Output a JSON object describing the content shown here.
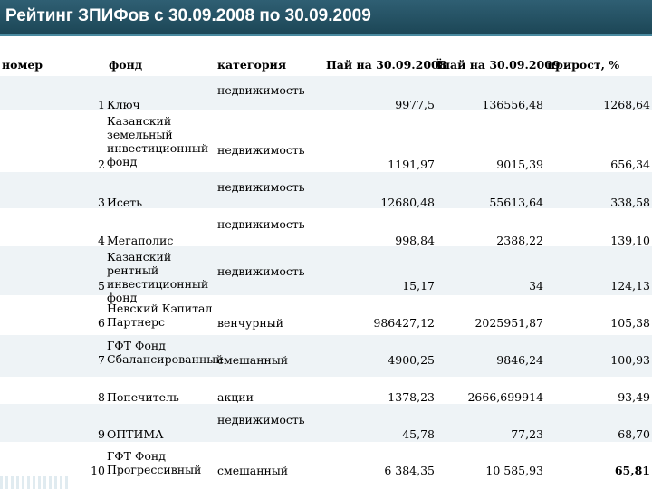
{
  "title": "Рейтинг ЗПИФов с 30.09.2008 по 30.09.2009",
  "headers": {
    "nomer": "номер",
    "fond": "фонд",
    "kategoriya": "категория",
    "pai2008": "Пай на 30.09.2008",
    "pai2009": "Ïпай на 30.09.2009",
    "prirost": "прирост, %"
  },
  "rows": [
    {
      "n": "1",
      "fund": "Ключ",
      "cat": "недвижимость",
      "v2008": "9977,5",
      "v2009": "136556,48",
      "growth": "1268,64"
    },
    {
      "n": "2",
      "fund": "Казанский земельный инвестиционный фонд",
      "cat": "недвижимость",
      "v2008": "1191,97",
      "v2009": "9015,39",
      "growth": "656,34"
    },
    {
      "n": "3",
      "fund": "Исеть",
      "cat": "недвижимость",
      "v2008": "12680,48",
      "v2009": "55613,64",
      "growth": "338,58"
    },
    {
      "n": "4",
      "fund": "Мегаполис",
      "cat": "недвижимость",
      "v2008": "998,84",
      "v2009": "2388,22",
      "growth": "139,10"
    },
    {
      "n": "5",
      "fund": "Казанский рентный инвестиционный фонд",
      "cat": "недвижимость",
      "v2008": "15,17",
      "v2009": "34",
      "growth": "124,13"
    },
    {
      "n": "6",
      "fund": "Невский Кэпитал Партнерс",
      "cat": "венчурный",
      "v2008": "986427,12",
      "v2009": "2025951,87",
      "growth": "105,38"
    },
    {
      "n": "7",
      "fund": "ГФТ Фонд Сбалансированный",
      "cat": "смешанный",
      "v2008": "4900,25",
      "v2009": "9846,24",
      "growth": "100,93"
    },
    {
      "n": "8",
      "fund": "Попечитель",
      "cat": "акции",
      "v2008": "1378,23",
      "v2009": "2666,699914",
      "growth": "93,49"
    },
    {
      "n": "9",
      "fund": "ОПТИМА",
      "cat": "недвижимость",
      "v2008": "45,78",
      "v2009": "77,23",
      "growth": "68,70"
    },
    {
      "n": "10",
      "fund": "ГФТ Фонд Прогрессивный",
      "cat": "смешанный",
      "v2008": "6 384,35",
      "v2009": "10 585,93",
      "growth": "65,81"
    }
  ]
}
